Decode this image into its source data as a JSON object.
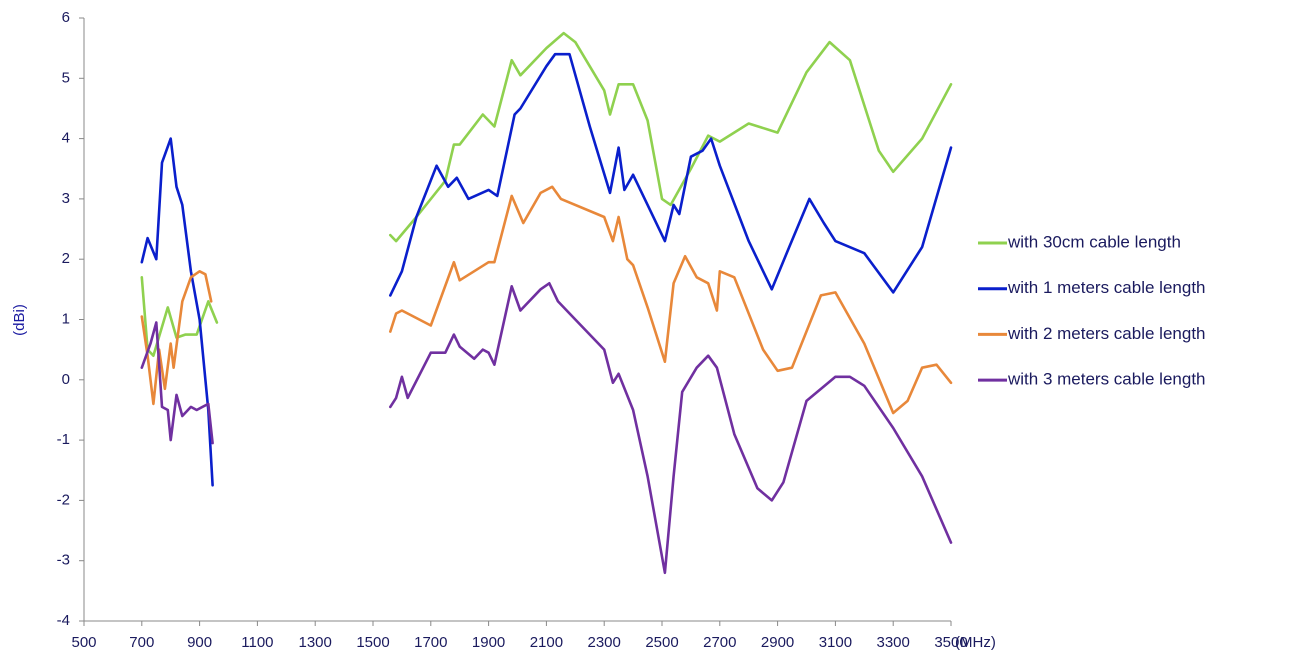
{
  "chart_data": {
    "type": "line",
    "xlabel": "(MHz)",
    "ylabel": "(dBi)",
    "xlim": [
      500,
      3500
    ],
    "xticks": [
      500,
      700,
      900,
      1100,
      1300,
      1500,
      1700,
      1900,
      2100,
      2300,
      2500,
      2700,
      2900,
      3100,
      3300,
      3500
    ],
    "ylim": [
      -4,
      6
    ],
    "yticks": [
      -4,
      -3,
      -2,
      -1,
      0,
      1,
      2,
      3,
      4,
      5,
      6
    ],
    "grid": false,
    "legend": "right",
    "series": [
      {
        "name": "with 30cm cable length",
        "color": "#8fd14f",
        "x": [
          700,
          720,
          740,
          790,
          820,
          850,
          890,
          930,
          960,
          null,
          1560,
          1580,
          1650,
          1750,
          1780,
          1800,
          1880,
          1920,
          1980,
          2010,
          2100,
          2160,
          2200,
          2300,
          2320,
          2350,
          2400,
          2450,
          2500,
          2530,
          2600,
          2660,
          2700,
          2800,
          2900,
          3000,
          3080,
          3150,
          3250,
          3300,
          3400,
          3500
        ],
        "values": [
          1.7,
          0.5,
          0.4,
          1.2,
          0.7,
          0.75,
          0.75,
          1.3,
          0.95,
          null,
          2.4,
          2.3,
          2.7,
          3.3,
          3.9,
          3.9,
          4.4,
          4.2,
          5.3,
          5.05,
          5.5,
          5.75,
          5.6,
          4.8,
          4.4,
          4.9,
          4.9,
          4.3,
          3.0,
          2.9,
          3.5,
          4.05,
          3.95,
          4.25,
          4.1,
          5.1,
          5.6,
          5.3,
          3.8,
          3.45,
          4.0,
          4.9
        ]
      },
      {
        "name": "with 1 meters cable length",
        "color": "#0a1fcc",
        "x": [
          700,
          720,
          750,
          770,
          800,
          820,
          840,
          870,
          900,
          930,
          945,
          null,
          1560,
          1600,
          1650,
          1720,
          1760,
          1790,
          1830,
          1900,
          1930,
          1990,
          2010,
          2100,
          2130,
          2180,
          2250,
          2320,
          2350,
          2370,
          2400,
          2450,
          2510,
          2540,
          2560,
          2600,
          2640,
          2670,
          2700,
          2800,
          2880,
          2940,
          3010,
          3060,
          3100,
          3200,
          3300,
          3400,
          3500
        ],
        "values": [
          1.95,
          2.35,
          2.0,
          3.6,
          4.0,
          3.2,
          2.9,
          1.8,
          1.0,
          -0.5,
          -1.75,
          null,
          1.4,
          1.8,
          2.7,
          3.55,
          3.2,
          3.35,
          3.0,
          3.15,
          3.05,
          4.4,
          4.5,
          5.2,
          5.4,
          5.4,
          4.2,
          3.1,
          3.85,
          3.15,
          3.4,
          2.9,
          2.3,
          2.9,
          2.75,
          3.7,
          3.8,
          4.0,
          3.55,
          2.3,
          1.5,
          2.2,
          3.0,
          2.6,
          2.3,
          2.1,
          1.45,
          2.2,
          3.85
        ]
      },
      {
        "name": "with 2 meters cable length",
        "color": "#e8883a",
        "x": [
          700,
          720,
          740,
          760,
          780,
          800,
          810,
          840,
          870,
          900,
          920,
          940,
          null,
          1560,
          1580,
          1600,
          1700,
          1780,
          1800,
          1900,
          1920,
          1980,
          2020,
          2080,
          2120,
          2150,
          2300,
          2330,
          2350,
          2380,
          2400,
          2450,
          2510,
          2540,
          2580,
          2620,
          2660,
          2690,
          2700,
          2750,
          2850,
          2900,
          2950,
          3050,
          3100,
          3200,
          3300,
          3350,
          3400,
          3450,
          3500
        ],
        "values": [
          1.05,
          0.4,
          -0.4,
          0.5,
          -0.15,
          0.6,
          0.2,
          1.3,
          1.7,
          1.8,
          1.75,
          1.3,
          null,
          0.8,
          1.1,
          1.15,
          0.9,
          1.95,
          1.65,
          1.95,
          1.95,
          3.05,
          2.6,
          3.1,
          3.2,
          3.0,
          2.7,
          2.3,
          2.7,
          2.0,
          1.9,
          1.2,
          0.3,
          1.6,
          2.05,
          1.7,
          1.6,
          1.15,
          1.8,
          1.7,
          0.5,
          0.15,
          0.2,
          1.4,
          1.45,
          0.6,
          -0.55,
          -0.35,
          0.2,
          0.25,
          -0.05
        ]
      },
      {
        "name": "with 3 meters cable length",
        "color": "#7030a0",
        "x": [
          700,
          730,
          750,
          770,
          790,
          800,
          820,
          840,
          870,
          890,
          910,
          930,
          945,
          null,
          1560,
          1580,
          1600,
          1620,
          1700,
          1750,
          1780,
          1800,
          1850,
          1880,
          1900,
          1920,
          1980,
          2010,
          2080,
          2110,
          2140,
          2200,
          2300,
          2330,
          2350,
          2400,
          2450,
          2510,
          2540,
          2570,
          2620,
          2660,
          2690,
          2750,
          2830,
          2880,
          2920,
          3000,
          3100,
          3150,
          3200,
          3300,
          3400,
          3500
        ],
        "values": [
          0.2,
          0.6,
          0.95,
          -0.45,
          -0.5,
          -1.0,
          -0.25,
          -0.6,
          -0.45,
          -0.5,
          -0.45,
          -0.4,
          -1.05,
          null,
          -0.45,
          -0.3,
          0.05,
          -0.3,
          0.45,
          0.45,
          0.75,
          0.55,
          0.35,
          0.5,
          0.45,
          0.25,
          1.55,
          1.15,
          1.5,
          1.6,
          1.3,
          1.0,
          0.5,
          -0.05,
          0.1,
          -0.5,
          -1.6,
          -3.2,
          -1.6,
          -0.2,
          0.2,
          0.4,
          0.2,
          -0.9,
          -1.8,
          -2.0,
          -1.7,
          -0.35,
          0.05,
          0.05,
          -0.1,
          -0.8,
          -1.6,
          -2.7
        ]
      }
    ]
  }
}
